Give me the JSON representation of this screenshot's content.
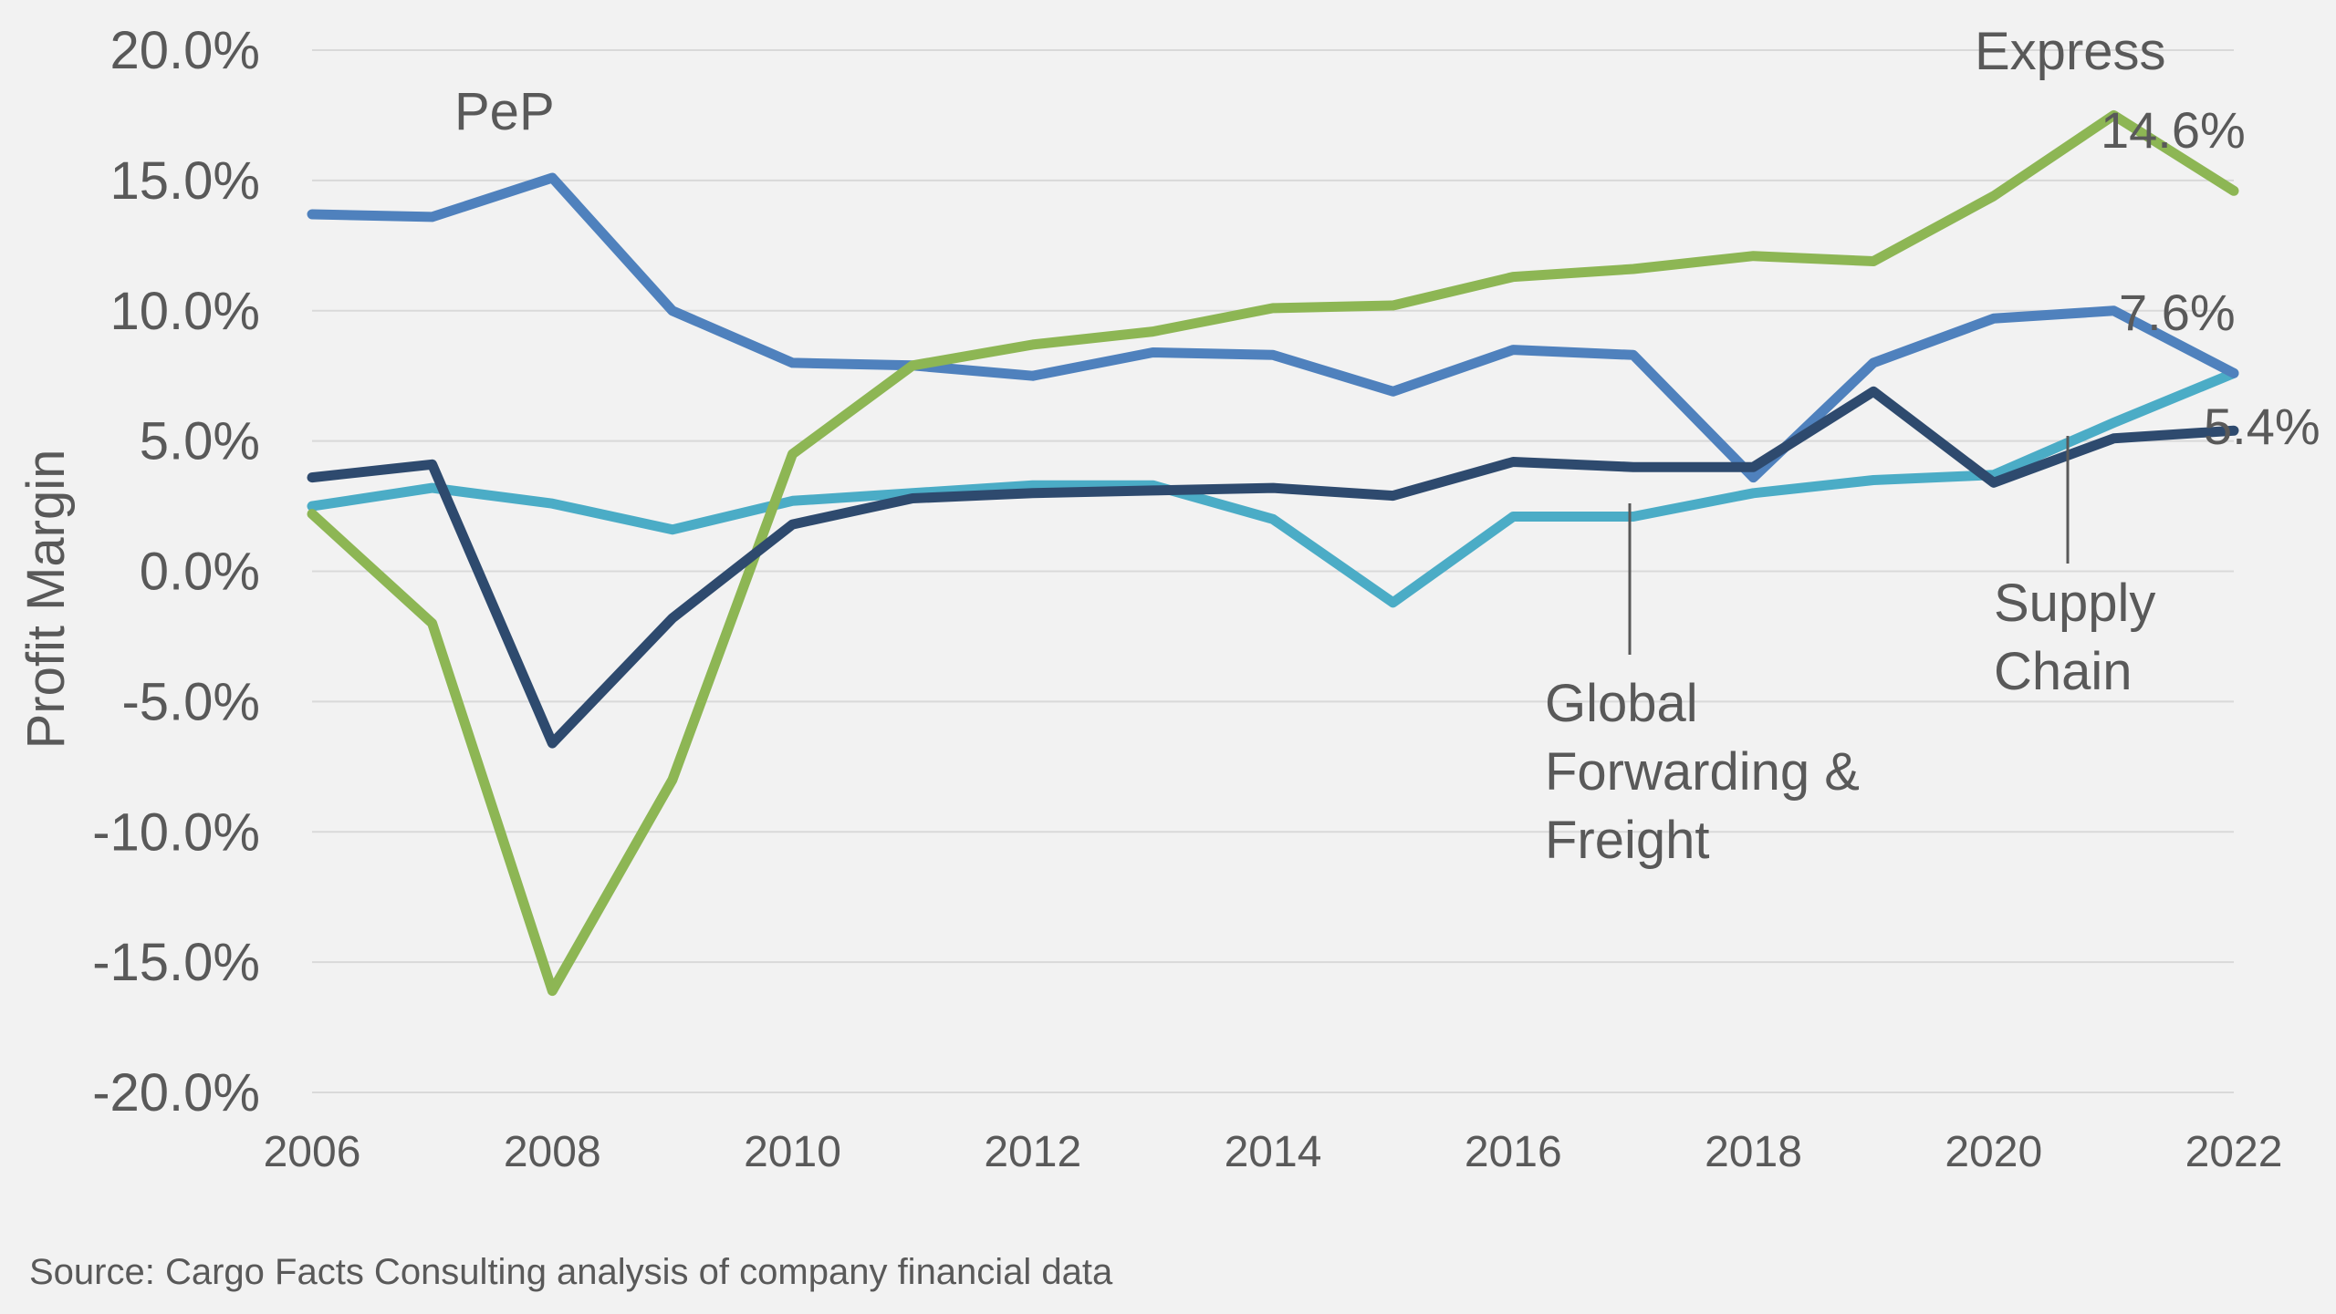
{
  "chart_data": {
    "type": "line",
    "title": "",
    "xlabel": "",
    "ylabel": "Profit Margin",
    "x": [
      2006,
      2007,
      2008,
      2009,
      2010,
      2011,
      2012,
      2013,
      2014,
      2015,
      2016,
      2017,
      2018,
      2019,
      2020,
      2021,
      2022
    ],
    "x_ticks": [
      "2006",
      "2008",
      "2010",
      "2012",
      "2014",
      "2016",
      "2018",
      "2020",
      "2022"
    ],
    "y_ticks": [
      "20.0%",
      "15.0%",
      "10.0%",
      "5.0%",
      "0.0%",
      "-5.0%",
      "-10.0%",
      "-15.0%",
      "-20.0%"
    ],
    "xlim": [
      2006,
      2022
    ],
    "ylim": [
      -20,
      20
    ],
    "grid": true,
    "legend": "none",
    "series": [
      {
        "name": "PeP",
        "color": "#4f81bd",
        "values": [
          13.7,
          13.6,
          15.1,
          10.0,
          8.0,
          7.9,
          7.5,
          8.4,
          8.3,
          6.9,
          8.5,
          8.3,
          3.6,
          8.0,
          9.7,
          10.0,
          7.6
        ]
      },
      {
        "name": "Express",
        "color": "#8db654",
        "values": [
          2.2,
          -2.0,
          -16.1,
          -8.0,
          4.5,
          7.9,
          8.7,
          9.2,
          10.1,
          10.2,
          11.3,
          11.6,
          12.1,
          11.9,
          14.4,
          17.5,
          14.6
        ]
      },
      {
        "name": "Global Forwarding & Freight",
        "color": "#4bacc6",
        "values": [
          2.5,
          3.2,
          2.6,
          1.6,
          2.7,
          3.0,
          3.3,
          3.3,
          2.0,
          -1.2,
          2.1,
          2.1,
          3.0,
          3.5,
          3.7,
          5.7,
          7.6
        ]
      },
      {
        "name": "Supply Chain",
        "color": "#2e4a6e",
        "values": [
          3.6,
          4.1,
          -6.6,
          -1.8,
          1.8,
          2.8,
          3.0,
          3.1,
          3.2,
          2.9,
          4.2,
          4.0,
          4.0,
          6.9,
          3.4,
          5.1,
          5.4
        ]
      }
    ],
    "annotations": {
      "pep_label": "PeP",
      "express_label": "Express",
      "gff_line1": "Global",
      "gff_line2": "Forwarding &",
      "gff_line3": "Freight",
      "sc_line1": "Supply",
      "sc_line2": "Chain",
      "end_express": "14.6%",
      "end_pep": "7.6%",
      "end_sc": "5.4%"
    },
    "source": "Source: Cargo Facts Consulting analysis of company financial data"
  }
}
